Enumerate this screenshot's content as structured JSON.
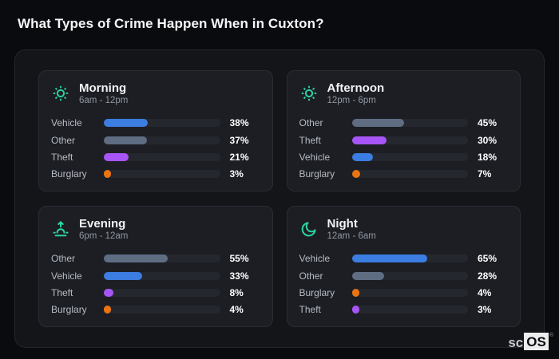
{
  "page": {
    "title": "What Types of Crime Happen When in Cuxton?"
  },
  "logo": {
    "prefix": "sc",
    "suffix": "OS",
    "mark": "®"
  },
  "colors": {
    "background": "#0a0b0e",
    "panel_bg": "#141519",
    "panel_border": "#25272d",
    "card_bg": "#1c1e24",
    "card_border": "#2a2c33",
    "bar_track": "#25272e",
    "icon_accent": "#2dd4a4",
    "title_text": "#f5f6f8",
    "label_text": "#b7bbc3",
    "subtitle_text": "#9197a1",
    "value_text": "#ffffff",
    "category_colors": {
      "Vehicle": "#3b7de0",
      "Other": "#5f6d83",
      "Theft": "#a855f7",
      "Burglary": "#e97412"
    }
  },
  "chart_data": [
    {
      "type": "bar",
      "orientation": "horizontal",
      "title": "Morning",
      "subtitle": "6am - 12pm",
      "icon": "sun",
      "categories": [
        "Vehicle",
        "Other",
        "Theft",
        "Burglary"
      ],
      "values": [
        38,
        37,
        21,
        3
      ],
      "unit": "%",
      "xlim": [
        0,
        100
      ],
      "grid": false,
      "legend": false
    },
    {
      "type": "bar",
      "orientation": "horizontal",
      "title": "Afternoon",
      "subtitle": "12pm - 6pm",
      "icon": "sun",
      "categories": [
        "Other",
        "Theft",
        "Vehicle",
        "Burglary"
      ],
      "values": [
        45,
        30,
        18,
        7
      ],
      "unit": "%",
      "xlim": [
        0,
        100
      ],
      "grid": false,
      "legend": false
    },
    {
      "type": "bar",
      "orientation": "horizontal",
      "title": "Evening",
      "subtitle": "6pm - 12am",
      "icon": "sunrise",
      "categories": [
        "Other",
        "Vehicle",
        "Theft",
        "Burglary"
      ],
      "values": [
        55,
        33,
        8,
        4
      ],
      "unit": "%",
      "xlim": [
        0,
        100
      ],
      "grid": false,
      "legend": false
    },
    {
      "type": "bar",
      "orientation": "horizontal",
      "title": "Night",
      "subtitle": "12am - 6am",
      "icon": "moon",
      "categories": [
        "Vehicle",
        "Other",
        "Burglary",
        "Theft"
      ],
      "values": [
        65,
        28,
        4,
        3
      ],
      "unit": "%",
      "xlim": [
        0,
        100
      ],
      "grid": false,
      "legend": false
    }
  ]
}
